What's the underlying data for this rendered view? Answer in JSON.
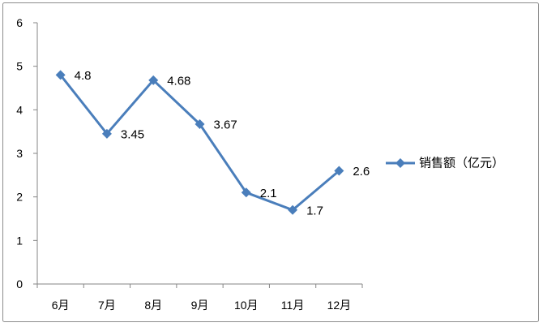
{
  "chart_data": {
    "type": "line",
    "categories": [
      "6月",
      "7月",
      "8月",
      "9月",
      "10月",
      "11月",
      "12月"
    ],
    "series": [
      {
        "name": "销售额（亿元）",
        "values": [
          4.8,
          3.45,
          4.68,
          3.67,
          2.1,
          1.7,
          2.6
        ],
        "marker": "diamond",
        "color": "#4a7ebb"
      }
    ],
    "data_labels": true,
    "ylim": [
      0,
      6
    ],
    "yticks": [
      0,
      1,
      2,
      3,
      4,
      5,
      6
    ],
    "grid": false,
    "legend": "right",
    "axis_color": "#868686"
  }
}
